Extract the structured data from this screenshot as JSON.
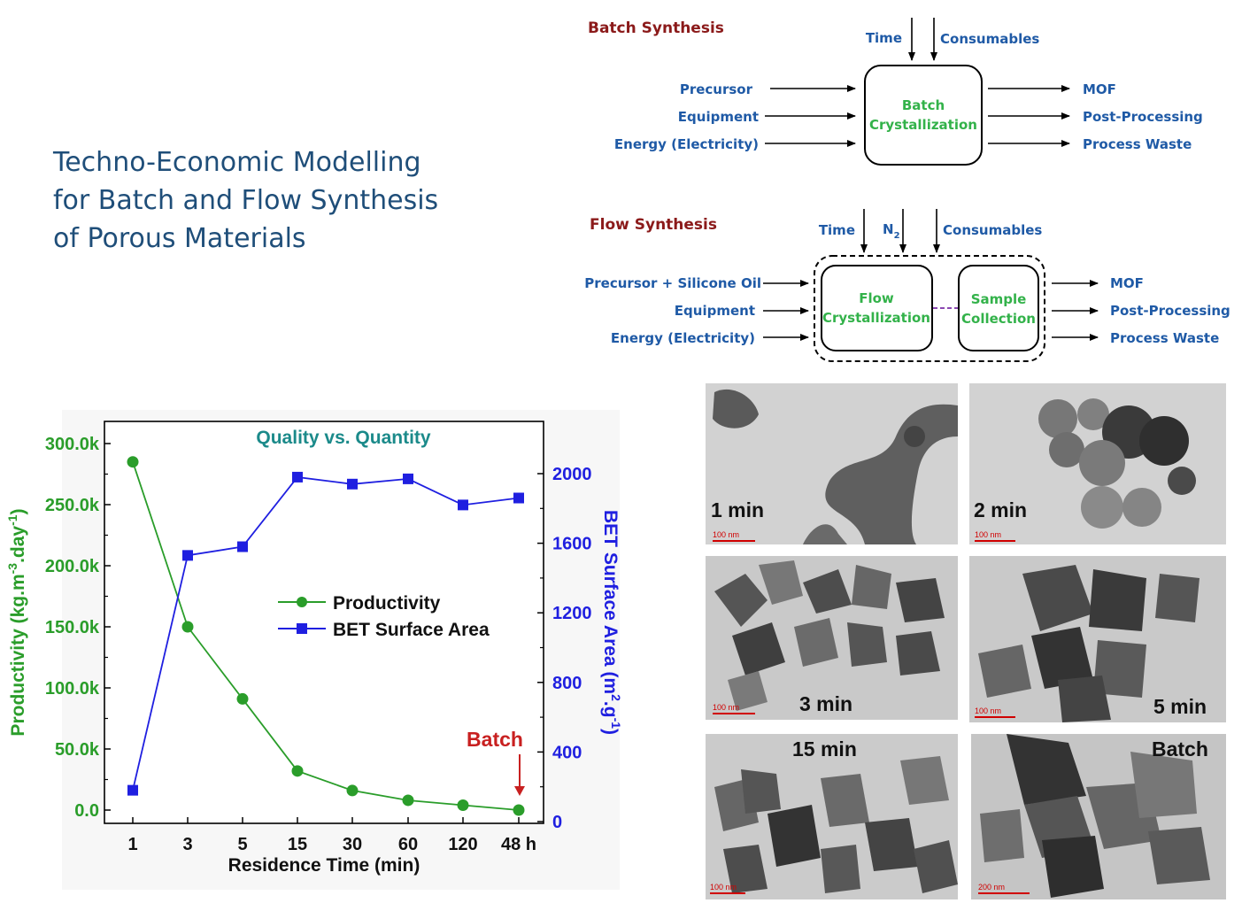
{
  "title": {
    "line1": "Techno-Economic Modelling",
    "line2": "for Batch and Flow Synthesis",
    "line3": "of Porous Materials"
  },
  "batch": {
    "heading": "Batch Synthesis",
    "top_inputs": [
      "Time",
      "Consumables"
    ],
    "inputs": [
      "Precursor",
      "Equipment",
      "Energy (Electricity)"
    ],
    "box": [
      "Batch",
      "Crystallization"
    ],
    "outputs": [
      "MOF",
      "Post-Processing",
      "Process Waste"
    ]
  },
  "flow": {
    "heading": "Flow Synthesis",
    "top_inputs": [
      "Time",
      "N",
      "2",
      "Consumables"
    ],
    "inputs": [
      "Precursor + Silicone Oil",
      "Equipment",
      "Energy (Electricity)"
    ],
    "box1": [
      "Flow",
      "Crystallization"
    ],
    "box2": [
      "Sample",
      "Collection"
    ],
    "outputs": [
      "MOF",
      "Post-Processing",
      "Process Waste"
    ]
  },
  "colors": {
    "productivity": "#2a9d2a",
    "bet": "#1f1fe0",
    "title_teal": "#1b8a8a",
    "batch_annot": "#c82020",
    "label_blue": "#1f5aa6",
    "box_green": "#33b24a",
    "heading_red": "#8b1a1a"
  },
  "chart_data": {
    "type": "line",
    "title": "Quality vs. Quantity",
    "categories": [
      "1",
      "3",
      "5",
      "15",
      "30",
      "60",
      "120",
      "48 h"
    ],
    "xlabel": "Residence Time (min)",
    "ylabel_left": "Productivity (kg.m-3.day-1)",
    "ylabel_left_parts": [
      "Productivity (kg.m",
      "-3",
      ".day",
      "-1",
      ")"
    ],
    "ylabel_right": "BET Surface Area (m2.g-1)",
    "ylabel_right_parts": [
      "BET Surface Area (m",
      "2",
      ".g",
      "-1",
      ")"
    ],
    "ylim_left": [
      0,
      300000
    ],
    "ylim_right": [
      0,
      2000
    ],
    "yticks_left": [
      "0.0",
      "50.0k",
      "100.0k",
      "150.0k",
      "200.0k",
      "250.0k",
      "300.0k"
    ],
    "yticks_right": [
      "0",
      "400",
      "800",
      "1200",
      "1600",
      "2000"
    ],
    "legend_position": "center-right",
    "series": [
      {
        "name": "Productivity",
        "axis": "left",
        "marker": "circle",
        "values": [
          285000,
          150000,
          91000,
          32000,
          16000,
          8000,
          4000,
          0
        ]
      },
      {
        "name": "BET Surface Area",
        "axis": "right",
        "marker": "square",
        "values": [
          180,
          1530,
          1580,
          1980,
          1940,
          1970,
          1820,
          1860
        ]
      }
    ],
    "annotation": {
      "text": "Batch",
      "category": "48 h"
    }
  },
  "tem": [
    {
      "label": "1 min",
      "scale": "100 nm"
    },
    {
      "label": "2 min",
      "scale": "100 nm"
    },
    {
      "label": "3 min",
      "scale": "100 nm"
    },
    {
      "label": "5 min",
      "scale": "100 nm"
    },
    {
      "label": "15 min",
      "scale": "100 nm"
    },
    {
      "label": "Batch",
      "scale": "200 nm"
    }
  ]
}
